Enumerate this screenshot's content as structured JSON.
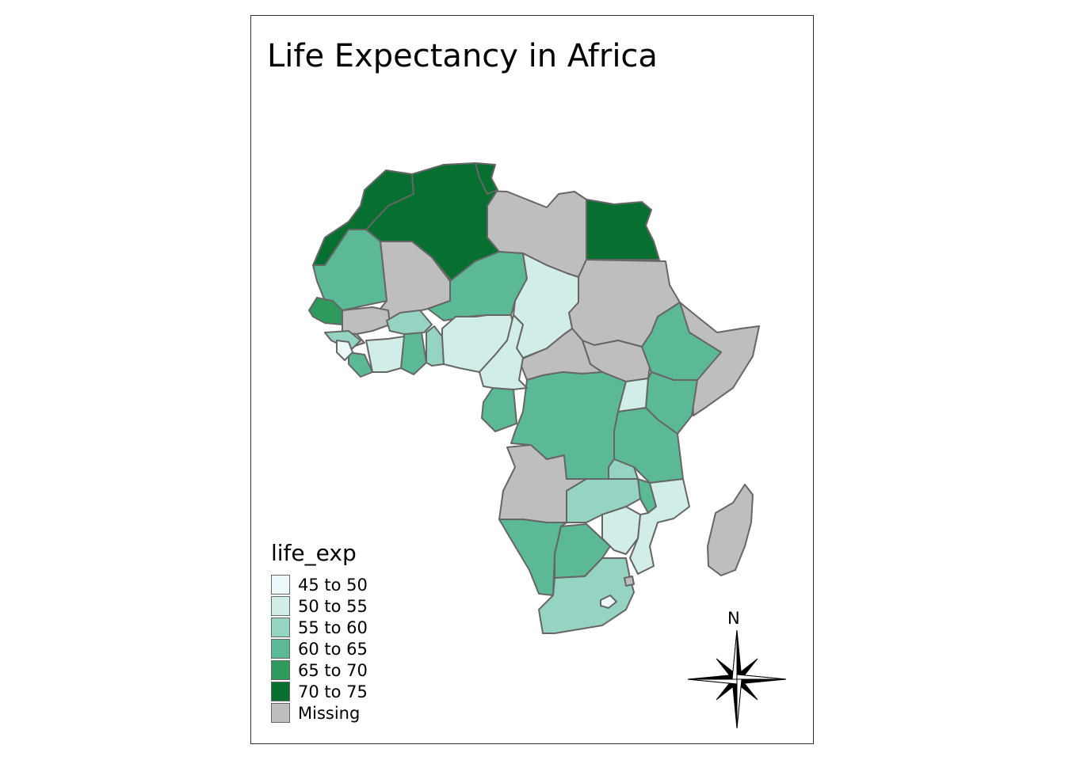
{
  "title": "Life Expectancy in Africa",
  "legend": {
    "title": "life_exp",
    "items": [
      {
        "label": "45 to 50",
        "color": "#edf8fb"
      },
      {
        "label": "50 to 55",
        "color": "#d1ede8"
      },
      {
        "label": "55 to 60",
        "color": "#95d4c3"
      },
      {
        "label": "60 to 65",
        "color": "#5cb995"
      },
      {
        "label": "65 to 70",
        "color": "#2e9a5b"
      },
      {
        "label": "70 to 75",
        "color": "#077030"
      },
      {
        "label": "Missing",
        "color": "#bebebe"
      }
    ]
  },
  "north_arrow": {
    "label": "N",
    "icon": "compass-rose-icon"
  },
  "colors": {
    "border": "#666666",
    "frame": "#333333"
  }
}
